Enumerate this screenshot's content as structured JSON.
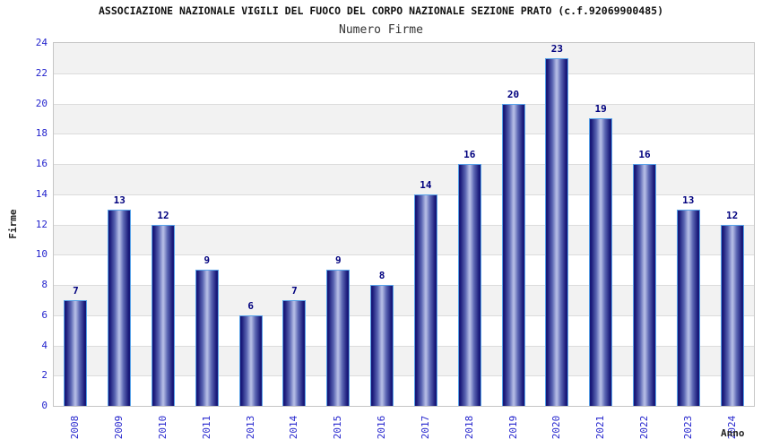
{
  "header": {
    "title": "ASSOCIAZIONE NAZIONALE VIGILI DEL FUOCO DEL CORPO NAZIONALE SEZIONE PRATO (c.f.92069900485)",
    "subtitle": "Numero Firme"
  },
  "chart_data": {
    "type": "bar",
    "title": "Numero Firme",
    "categories": [
      "2008",
      "2009",
      "2010",
      "2011",
      "2013",
      "2014",
      "2015",
      "2016",
      "2017",
      "2018",
      "2019",
      "2020",
      "2021",
      "2022",
      "2023",
      "2024"
    ],
    "values": [
      7,
      13,
      12,
      9,
      6,
      7,
      9,
      8,
      14,
      16,
      20,
      23,
      19,
      16,
      13,
      12
    ],
    "xlabel": "Anno",
    "ylabel": "Firme",
    "ylim": [
      0,
      24
    ],
    "ytick_step": 2,
    "yticks": [
      0,
      2,
      4,
      6,
      8,
      10,
      12,
      14,
      16,
      18,
      20,
      22,
      24
    ],
    "grid": true,
    "band_stripes": true,
    "legend": false,
    "value_labels_shown": true,
    "colors": {
      "title_color": "#111111",
      "subtitle_color": "#333333",
      "axis_title_color": "#222222",
      "tick_label": "#2424cd",
      "value_label": "#00007e",
      "band_gray": "#f2f2f2",
      "grid_line": "#dcdcdc",
      "plot_border": "#c6c6c6",
      "bar_dark": "#181878",
      "bar_mid": "#5b66b3",
      "bar_light": "#b2bae4",
      "bar_outline": "#58a2e8"
    }
  }
}
